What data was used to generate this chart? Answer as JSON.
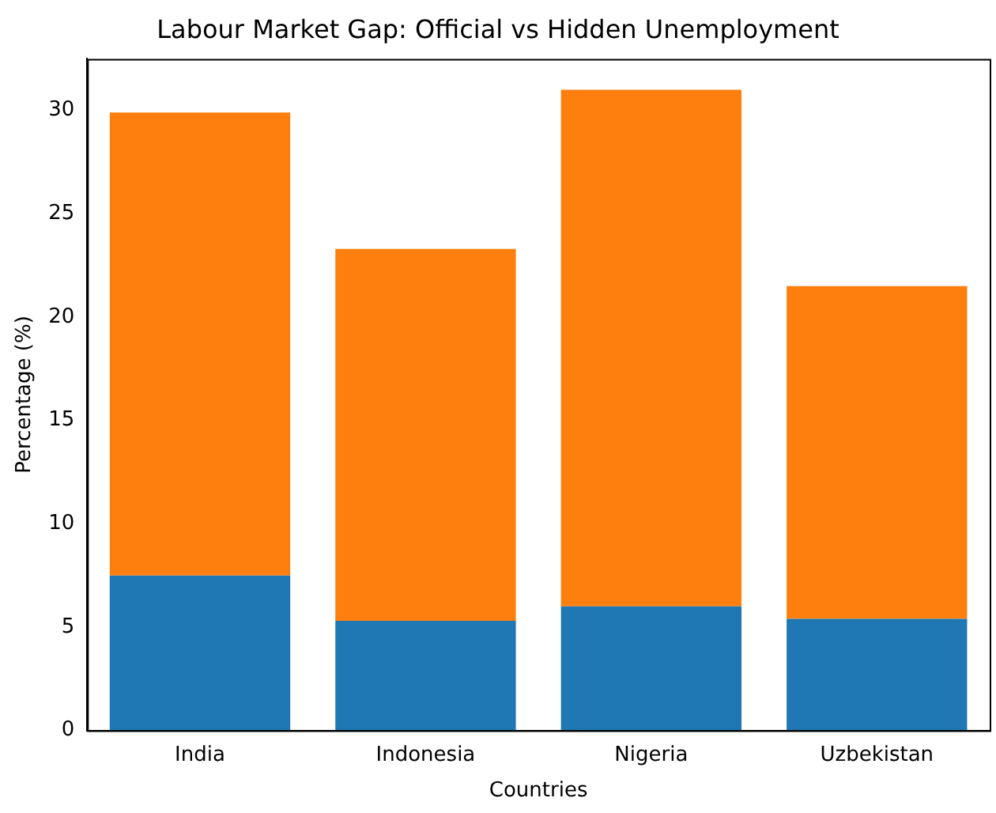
{
  "chart_data": {
    "type": "bar",
    "title": "Labour Market Gap: Official vs Hidden Unemployment",
    "xlabel": "Countries",
    "ylabel": "Percentage (%)",
    "categories": [
      "India",
      "Indonesia",
      "Nigeria",
      "Uzbekistan"
    ],
    "stacked": true,
    "series": [
      {
        "color": "#1f77b4",
        "values": [
          7.5,
          5.3,
          6.0,
          5.4
        ]
      },
      {
        "color": "#ff7f0e",
        "values": [
          22.4,
          18.0,
          25.0,
          16.1
        ]
      }
    ],
    "ylim": [
      0,
      32.5
    ],
    "yticks": [
      0,
      5,
      10,
      15,
      20,
      25,
      30
    ],
    "grid": false,
    "legend": false
  }
}
